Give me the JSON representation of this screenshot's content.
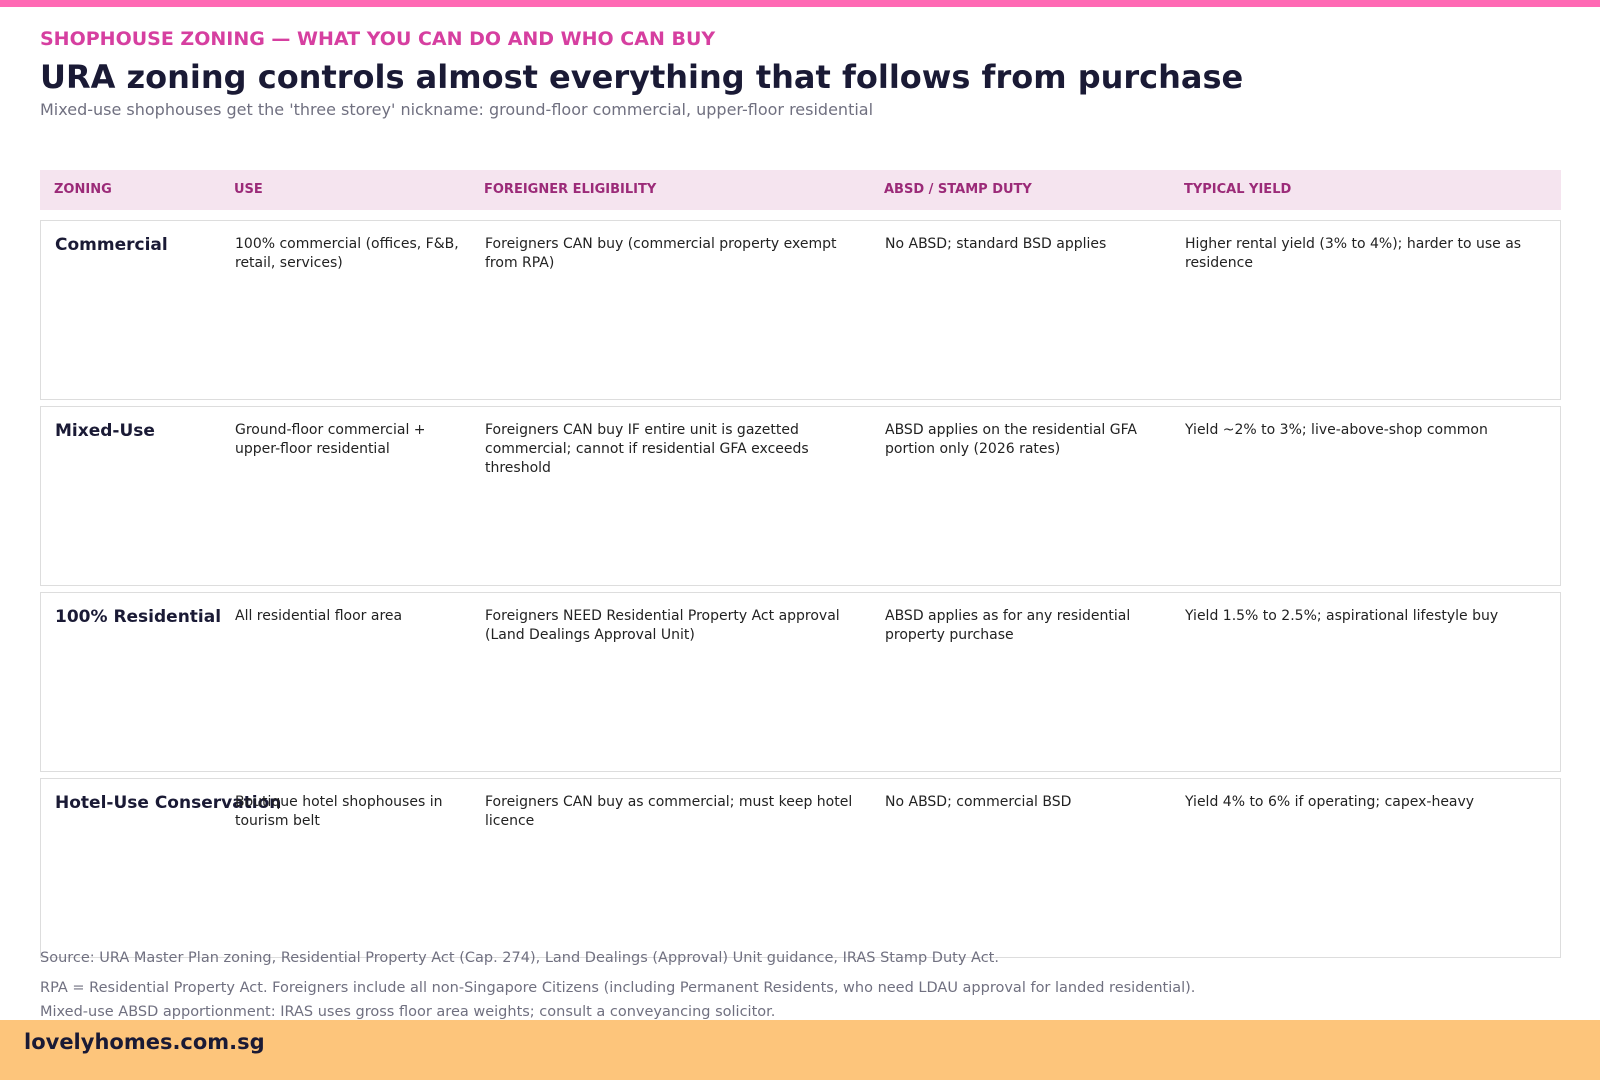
{
  "header": {
    "eyebrow": "SHOPHOUSE ZONING — WHAT YOU CAN DO AND WHO CAN BUY",
    "title": "URA zoning controls almost everything that follows from purchase",
    "subtitle": "Mixed-use shophouses get the 'three storey' nickname: ground-floor commercial, upper-floor residential"
  },
  "table": {
    "columns": [
      "ZONING",
      "USE",
      "FOREIGNER ELIGIBILITY",
      "ABSD / STAMP DUTY",
      "TYPICAL YIELD"
    ],
    "rows": [
      [
        "Commercial",
        "100% commercial (offices, F&B, retail, services)",
        "Foreigners CAN buy (commercial property exempt from RPA)",
        "No ABSD; standard BSD applies",
        "Higher rental yield (3% to 4%); harder to use as residence"
      ],
      [
        "Mixed-Use",
        "Ground-floor commercial + upper-floor residential",
        "Foreigners CAN buy IF entire unit is gazetted commercial; cannot if residential GFA exceeds threshold",
        "ABSD applies on the residential GFA portion only (2026 rates)",
        "Yield ~2% to 3%; live-above-shop common"
      ],
      [
        "100% Residential",
        "All residential floor area",
        "Foreigners NEED Residential Property Act approval (Land Dealings Approval Unit)",
        "ABSD applies as for any residential property purchase",
        "Yield 1.5% to 2.5%; aspirational lifestyle buy"
      ],
      [
        "Hotel-Use Conservation",
        "Boutique hotel shophouses in tourism belt",
        "Foreigners CAN buy as commercial; must keep hotel licence",
        "No ABSD; commercial BSD",
        "Yield 4% to 6% if operating; capex-heavy"
      ]
    ]
  },
  "notes": [
    "Source: URA Master Plan zoning, Residential Property Act (Cap. 274), Land Dealings (Approval) Unit guidance, IRAS Stamp Duty Act.",
    "RPA = Residential Property Act. Foreigners include all non-Singapore Citizens (including Permanent Residents, who need LDAU approval for landed residential).",
    "Mixed-use ABSD apportionment: IRAS uses gross floor area weights; consult a conveyancing solicitor."
  ],
  "footer": {
    "brand": "lovelyhomes.com.sg"
  }
}
